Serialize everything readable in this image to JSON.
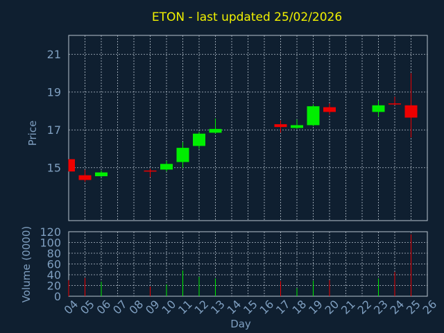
{
  "chart_data": {
    "type": "candlestick",
    "title": "ETON - last updated 25/02/2026",
    "xlabel": "Day",
    "price_panel": {
      "ylabel": "Price",
      "ylim": [
        12.2,
        22.0
      ],
      "yticks": [
        15,
        17,
        19,
        21
      ]
    },
    "volume_panel": {
      "ylabel": "Volume (0000)",
      "ylim": [
        0,
        120
      ],
      "yticks": [
        0,
        20,
        40,
        60,
        80,
        100,
        120
      ]
    },
    "x_ticks": [
      "04",
      "05",
      "06",
      "07",
      "08",
      "09",
      "10",
      "11",
      "12",
      "13",
      "14",
      "15",
      "16",
      "17",
      "18",
      "19",
      "20",
      "21",
      "22",
      "23",
      "24",
      "25",
      "26"
    ],
    "x_range": [
      4,
      26
    ],
    "candles": [
      {
        "day": 4.0,
        "open": 15.45,
        "high": 15.45,
        "low": 14.8,
        "close": 14.8
      },
      {
        "day": 5.0,
        "open": 14.6,
        "high": 14.9,
        "low": 14.25,
        "close": 14.35
      },
      {
        "day": 6.0,
        "open": 14.55,
        "high": 14.85,
        "low": 14.5,
        "close": 14.75
      },
      {
        "day": 9.0,
        "open": 14.85,
        "high": 14.95,
        "low": 14.5,
        "close": 14.8
      },
      {
        "day": 10.0,
        "open": 14.9,
        "high": 15.35,
        "low": 14.8,
        "close": 15.2
      },
      {
        "day": 11.0,
        "open": 15.3,
        "high": 16.35,
        "low": 15.0,
        "close": 16.05
      },
      {
        "day": 12.0,
        "open": 16.15,
        "high": 16.9,
        "low": 16.0,
        "close": 16.8
      },
      {
        "day": 13.0,
        "open": 16.85,
        "high": 17.6,
        "low": 16.8,
        "close": 17.05
      },
      {
        "day": 17.0,
        "open": 17.3,
        "high": 17.5,
        "low": 16.85,
        "close": 17.15
      },
      {
        "day": 18.0,
        "open": 17.1,
        "high": 17.55,
        "low": 17.05,
        "close": 17.25
      },
      {
        "day": 19.0,
        "open": 17.25,
        "high": 18.35,
        "low": 17.2,
        "close": 18.25
      },
      {
        "day": 20.0,
        "open": 18.2,
        "high": 18.4,
        "low": 17.8,
        "close": 17.95
      },
      {
        "day": 23.0,
        "open": 17.95,
        "high": 18.55,
        "low": 17.7,
        "close": 18.3
      },
      {
        "day": 24.0,
        "open": 18.4,
        "high": 18.75,
        "low": 18.3,
        "close": 18.35
      },
      {
        "day": 25.0,
        "open": 18.3,
        "high": 20.0,
        "low": 16.6,
        "close": 17.65
      }
    ],
    "volume": [
      {
        "day": 4.0,
        "value": 30
      },
      {
        "day": 5.0,
        "value": 34
      },
      {
        "day": 6.0,
        "value": 27
      },
      {
        "day": 9.0,
        "value": 18
      },
      {
        "day": 10.0,
        "value": 22
      },
      {
        "day": 11.0,
        "value": 48
      },
      {
        "day": 12.0,
        "value": 36
      },
      {
        "day": 13.0,
        "value": 33
      },
      {
        "day": 17.0,
        "value": 28
      },
      {
        "day": 18.0,
        "value": 15
      },
      {
        "day": 19.0,
        "value": 29
      },
      {
        "day": 20.0,
        "value": 30
      },
      {
        "day": 23.0,
        "value": 33
      },
      {
        "day": 24.0,
        "value": 45
      },
      {
        "day": 25.0,
        "value": 115
      }
    ],
    "grid": true,
    "colors": {
      "background": "#0f1f30",
      "up": "#00ee00",
      "down": "#ee0000",
      "grid": "#b9c4cf",
      "axis_text": "#7f9fc0",
      "title": "#f2f200"
    }
  }
}
